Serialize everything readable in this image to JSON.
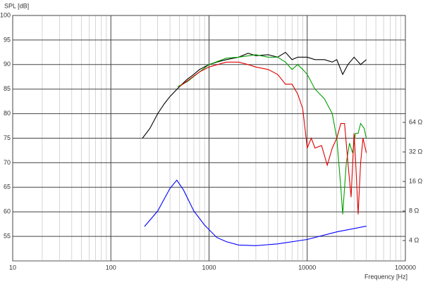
{
  "chart_data": {
    "type": "line",
    "y_label": "SPL [dB]",
    "x_label": "Frequency [Hz]",
    "x_scale": "log",
    "y2_scale": "log",
    "grid": true,
    "minor_grid": true,
    "xlim": [
      10,
      100000
    ],
    "xticks": [
      10,
      100,
      1000,
      10000,
      100000
    ],
    "ylim": [
      50,
      100
    ],
    "yticks": [
      55,
      60,
      65,
      70,
      75,
      80,
      85,
      90,
      95,
      100
    ],
    "y2lim": [
      2.48,
      787
    ],
    "y2ticks": [
      {
        "value": 4,
        "label": "4 Ω"
      },
      {
        "value": 8,
        "label": "8 Ω"
      },
      {
        "value": 16,
        "label": "16 Ω"
      },
      {
        "value": 32,
        "label": "32 Ω"
      },
      {
        "value": 64,
        "label": "64 Ω"
      }
    ],
    "series": [
      {
        "color": "#000000",
        "x": [
          210,
          250,
          300,
          350,
          400,
          500,
          600,
          700,
          800,
          1000,
          1200,
          1500,
          2000,
          2500,
          3000,
          4000,
          5000,
          6000,
          7000,
          8000,
          10000,
          12000,
          15000,
          18000,
          20000,
          23000,
          26000,
          30000,
          35000,
          40000
        ],
        "values": [
          75,
          77,
          80,
          82,
          83.5,
          85.5,
          87,
          88,
          89,
          90,
          90.5,
          91,
          91.5,
          92.3,
          91.8,
          92,
          91.5,
          92.5,
          91,
          91.5,
          91.5,
          91,
          91,
          90.5,
          91,
          88,
          90,
          91.5,
          90,
          91
        ]
      },
      {
        "color": "#00a000",
        "x": [
          480,
          600,
          800,
          1000,
          1500,
          2000,
          3000,
          4000,
          5000,
          6000,
          7000,
          8000,
          9000,
          10000,
          12000,
          15000,
          18000,
          20000,
          22000,
          23000,
          25000,
          27000,
          29000,
          31000,
          33000,
          35000,
          38000,
          40000
        ],
        "values": [
          85.5,
          86.5,
          88.5,
          90,
          91.3,
          91.5,
          92,
          91.5,
          91.5,
          90.5,
          89,
          90,
          89,
          88,
          85,
          83,
          80,
          75,
          65,
          59.5,
          70,
          74,
          72,
          76,
          76,
          78,
          77,
          75
        ]
      },
      {
        "color": "#e00000",
        "x": [
          500,
          800,
          1000,
          1500,
          2000,
          2500,
          3000,
          4000,
          5000,
          6000,
          7000,
          8000,
          9000,
          10000,
          11000,
          12000,
          14000,
          16000,
          18000,
          20000,
          22000,
          24000,
          26000,
          28000,
          30000,
          31000,
          33000,
          35000,
          37000,
          40000
        ],
        "values": [
          85.5,
          88.5,
          89.5,
          90.5,
          90.5,
          90,
          89.5,
          89,
          88,
          86,
          86,
          84,
          81,
          73,
          75,
          73,
          73.5,
          69.5,
          73,
          75,
          78,
          78,
          70,
          63,
          76,
          71,
          59.5,
          70,
          75,
          72
        ]
      },
      {
        "color": "#0000ff",
        "axis": "y2",
        "x": [
          220,
          300,
          400,
          470,
          550,
          700,
          900,
          1200,
          1500,
          2000,
          3000,
          5000,
          10000,
          20000,
          40000
        ],
        "values": [
          5.56,
          8,
          13.6,
          16.5,
          13.1,
          8,
          5.75,
          4.3,
          3.9,
          3.6,
          3.55,
          3.7,
          4.1,
          4.9,
          5.6
        ]
      }
    ]
  }
}
